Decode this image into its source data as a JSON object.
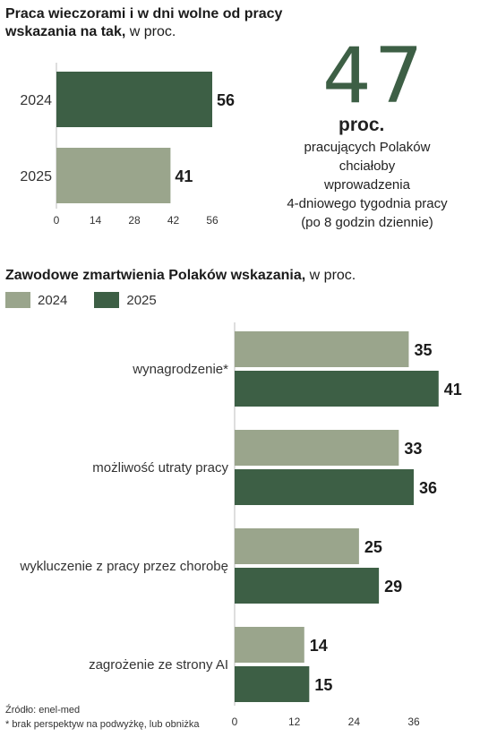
{
  "top_chart": {
    "title_bold": "Praca wieczorami i w dni wolne od pracy  wskazania na tak,",
    "title_light": " w proc.",
    "chart_data": {
      "type": "bar",
      "orientation": "horizontal",
      "categories": [
        "2024",
        "2025"
      ],
      "values": [
        56,
        41
      ],
      "xlim": [
        0,
        56
      ],
      "xticks": [
        0,
        14,
        28,
        42,
        56
      ],
      "colors": [
        "#3d5f45",
        "#9aa58c"
      ]
    }
  },
  "highlight": {
    "number": "47",
    "unit": "proc.",
    "lines": [
      "pracujących Polaków",
      "chciałoby",
      "wprowadzenia",
      "4-dniowego tygodnia pracy",
      "(po 8 godzin dziennie)"
    ]
  },
  "bottom_chart": {
    "title_bold": "Zawodowe zmartwienia Polaków wskazania,",
    "title_light": " w proc.",
    "legend": [
      {
        "label": "2024",
        "color": "#9aa58c"
      },
      {
        "label": "2025",
        "color": "#3d5f45"
      }
    ],
    "chart_data": {
      "type": "bar",
      "orientation": "horizontal",
      "categories": [
        "wynagrodzenie*",
        "możliwość utraty pracy",
        "wykluczenie z pracy przez chorobę",
        "zagrożenie ze strony AI"
      ],
      "series": [
        {
          "name": "2024",
          "values": [
            35,
            33,
            25,
            14
          ],
          "color": "#9aa58c"
        },
        {
          "name": "2025",
          "values": [
            41,
            36,
            29,
            15
          ],
          "color": "#3d5f45"
        }
      ],
      "xlim": [
        0,
        36
      ],
      "xticks": [
        0,
        12,
        24,
        36
      ]
    }
  },
  "footer": {
    "source": "Źródło: enel-med",
    "note": "* brak perspektyw na podwyżkę, lub obniżka"
  }
}
